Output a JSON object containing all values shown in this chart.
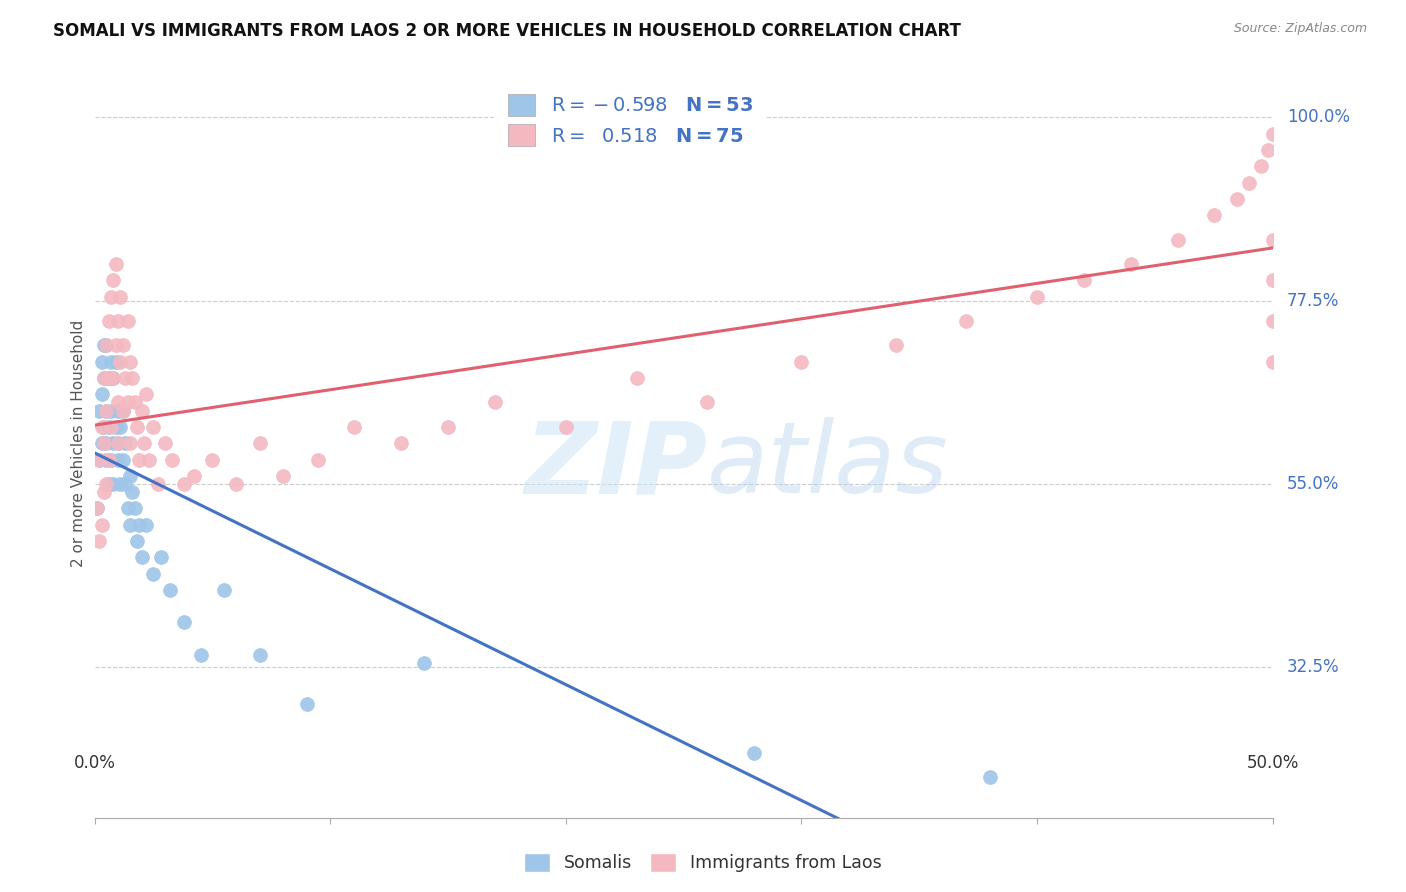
{
  "title": "SOMALI VS IMMIGRANTS FROM LAOS 2 OR MORE VEHICLES IN HOUSEHOLD CORRELATION CHART",
  "source": "Source: ZipAtlas.com",
  "ylabel": "2 or more Vehicles in Household",
  "ytick_labels": [
    "100.0%",
    "77.5%",
    "55.0%",
    "32.5%"
  ],
  "ytick_values": [
    1.0,
    0.775,
    0.55,
    0.325
  ],
  "xmin": 0.0,
  "xmax": 0.5,
  "ymin": 0.14,
  "ymax": 1.06,
  "somali_color": "#9fc5e8",
  "laos_color": "#f4b8c1",
  "somali_line_color": "#4472c4",
  "laos_line_color": "#e06070",
  "somali_marker_edge": "#7baed4",
  "laos_marker_edge": "#e898a8",
  "somali_x": [
    0.001,
    0.002,
    0.002,
    0.003,
    0.003,
    0.003,
    0.004,
    0.004,
    0.004,
    0.005,
    0.005,
    0.005,
    0.005,
    0.006,
    0.006,
    0.006,
    0.007,
    0.007,
    0.007,
    0.008,
    0.008,
    0.008,
    0.009,
    0.009,
    0.01,
    0.01,
    0.01,
    0.011,
    0.011,
    0.012,
    0.012,
    0.013,
    0.013,
    0.014,
    0.015,
    0.015,
    0.016,
    0.017,
    0.018,
    0.019,
    0.02,
    0.022,
    0.025,
    0.028,
    0.032,
    0.038,
    0.045,
    0.055,
    0.07,
    0.09,
    0.14,
    0.28,
    0.38
  ],
  "somali_y": [
    0.52,
    0.64,
    0.58,
    0.7,
    0.66,
    0.6,
    0.62,
    0.68,
    0.72,
    0.58,
    0.64,
    0.72,
    0.6,
    0.68,
    0.55,
    0.62,
    0.7,
    0.64,
    0.58,
    0.6,
    0.68,
    0.55,
    0.62,
    0.7,
    0.58,
    0.64,
    0.6,
    0.62,
    0.55,
    0.58,
    0.64,
    0.6,
    0.55,
    0.52,
    0.56,
    0.5,
    0.54,
    0.52,
    0.48,
    0.5,
    0.46,
    0.5,
    0.44,
    0.46,
    0.42,
    0.38,
    0.34,
    0.42,
    0.34,
    0.28,
    0.33,
    0.22,
    0.19
  ],
  "laos_x": [
    0.001,
    0.002,
    0.002,
    0.003,
    0.003,
    0.004,
    0.004,
    0.004,
    0.005,
    0.005,
    0.005,
    0.006,
    0.006,
    0.006,
    0.007,
    0.007,
    0.008,
    0.008,
    0.009,
    0.009,
    0.01,
    0.01,
    0.01,
    0.011,
    0.011,
    0.012,
    0.012,
    0.013,
    0.014,
    0.014,
    0.015,
    0.015,
    0.016,
    0.017,
    0.018,
    0.019,
    0.02,
    0.021,
    0.022,
    0.023,
    0.025,
    0.027,
    0.03,
    0.033,
    0.038,
    0.042,
    0.05,
    0.06,
    0.07,
    0.08,
    0.095,
    0.11,
    0.13,
    0.15,
    0.17,
    0.2,
    0.23,
    0.26,
    0.3,
    0.34,
    0.37,
    0.4,
    0.42,
    0.44,
    0.46,
    0.475,
    0.485,
    0.49,
    0.495,
    0.498,
    0.5,
    0.5,
    0.5,
    0.5,
    0.5
  ],
  "laos_y": [
    0.52,
    0.48,
    0.58,
    0.5,
    0.62,
    0.54,
    0.6,
    0.68,
    0.55,
    0.64,
    0.72,
    0.58,
    0.68,
    0.75,
    0.62,
    0.78,
    0.68,
    0.8,
    0.72,
    0.82,
    0.65,
    0.75,
    0.6,
    0.7,
    0.78,
    0.64,
    0.72,
    0.68,
    0.75,
    0.65,
    0.7,
    0.6,
    0.68,
    0.65,
    0.62,
    0.58,
    0.64,
    0.6,
    0.66,
    0.58,
    0.62,
    0.55,
    0.6,
    0.58,
    0.55,
    0.56,
    0.58,
    0.55,
    0.6,
    0.56,
    0.58,
    0.62,
    0.6,
    0.62,
    0.65,
    0.62,
    0.68,
    0.65,
    0.7,
    0.72,
    0.75,
    0.78,
    0.8,
    0.82,
    0.85,
    0.88,
    0.9,
    0.92,
    0.94,
    0.96,
    0.98,
    0.85,
    0.8,
    0.75,
    0.7
  ]
}
